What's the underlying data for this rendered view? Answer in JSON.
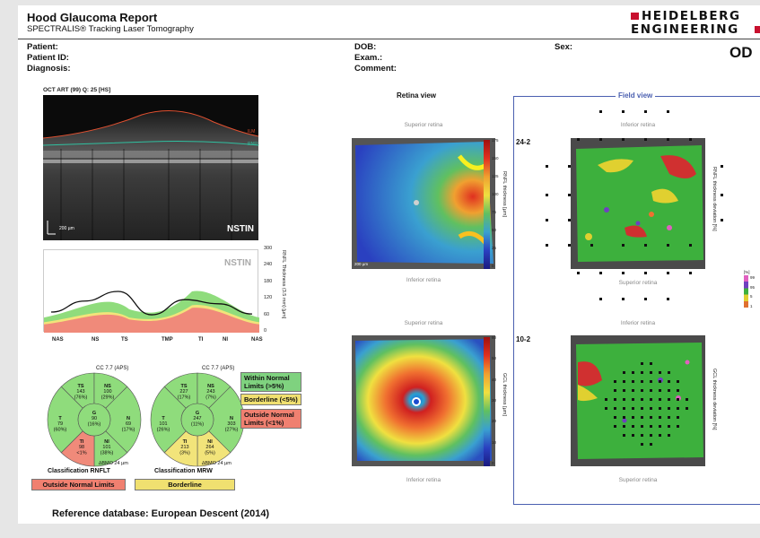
{
  "report": {
    "title": "Hood Glaucoma Report",
    "subtitle": "SPECTRALIS® Tracking Laser Tomography",
    "logo_line1": "HEIDELBERG",
    "logo_line2": "ENGINEERING",
    "eye": "OD"
  },
  "patient": {
    "patient_label": "Patient:",
    "patient_id_label": "Patient ID:",
    "diagnosis_label": "Diagnosis:",
    "dob_label": "DOB:",
    "exam_label": "Exam.:",
    "comment_label": "Comment:",
    "sex_label": "Sex:"
  },
  "oct": {
    "header": "OCT ART (99) Q: 25 [HS]",
    "scale": "200 µm",
    "layer_a": "ILM",
    "layer_b": "RNFL",
    "nstin": "NSTIN"
  },
  "profile": {
    "nstin": "NSTIN",
    "y_ticks": [
      "300",
      "240",
      "180",
      "120",
      "60",
      "0"
    ],
    "y_axis_label": "RNFL Thickness (3.5 mm) [µm]",
    "x_labels": [
      "NAS",
      "NS",
      "TS",
      "TMP",
      "TI",
      "NI",
      "NAS"
    ],
    "chart_data": {
      "type": "line",
      "x": [
        "NAS",
        "NS",
        "TS",
        "TMP",
        "TI",
        "NI",
        "NAS"
      ],
      "series": [
        {
          "values": [
            75,
            115,
            150,
            65,
            120,
            105,
            68
          ]
        }
      ],
      "ylim": [
        0,
        300
      ]
    }
  },
  "circles": {
    "rnfl": {
      "cc": "CC 7.7 (APS)",
      "ts": [
        "TS",
        "143",
        "(76%)"
      ],
      "ns": [
        "NS",
        "100",
        "(29%)"
      ],
      "t": [
        "T",
        "79",
        "(60%)"
      ],
      "g": [
        "G",
        "90",
        "(16%)"
      ],
      "n": [
        "N",
        "69",
        "(17%)"
      ],
      "ti": [
        "TI",
        "98",
        "<1%"
      ],
      "ni": [
        "NI",
        "101",
        "(38%)"
      ],
      "bmo": "∆BMO 24 µm",
      "class_label": "Classification RNFLT",
      "class_value": "Outside Normal Limits"
    },
    "mrw": {
      "cc": "CC 7.7 (APS)",
      "ts": [
        "TS",
        "227",
        "(17%)"
      ],
      "ns": [
        "NS",
        "243",
        "(7%)"
      ],
      "t": [
        "T",
        "101",
        "(26%)"
      ],
      "g": [
        "G",
        "247",
        "(11%)"
      ],
      "n": [
        "N",
        "303",
        "(27%)"
      ],
      "ti": [
        "TI",
        "213",
        "(3%)"
      ],
      "ni": [
        "NI",
        "264",
        "(5%)"
      ],
      "bmo": "∆BMO 24 µm",
      "class_label": "Classification MRW",
      "class_value": "Borderline"
    }
  },
  "legend": {
    "wnl": [
      "Within Normal",
      "Limits (>5%)"
    ],
    "bl": "Borderline (<5%)",
    "onl": [
      "Outside Normal",
      "Limits (<1%)"
    ]
  },
  "retina_view": {
    "title": "Retina view",
    "sup": "Superior retina",
    "inf": "Inferior retina",
    "sup2": "Superior retina",
    "inf2": "Inferior retina",
    "rnfl_axis": "RNFL thickness [µm]",
    "gcl_axis": "GCL thickness [µm]",
    "rnfl_ticks": [
      "175",
      "150",
      "125",
      "100",
      "75",
      "50",
      "25",
      "0"
    ],
    "gcl_ticks": [
      "60",
      "50",
      "40",
      "30",
      "20",
      "10",
      "0"
    ],
    "scale": "200 µm"
  },
  "field_view": {
    "title": "Field view",
    "inf": "Inferior retina",
    "sup": "Superior retina",
    "inf2": "Inferior retina",
    "sup2": "Superior retina",
    "label_242": "24-2",
    "label_102": "10-2",
    "rnfl_dev": "RNFL thickness deviation [%]",
    "gcl_dev": "GCL thickness deviation [%]",
    "pct_label": "[%]",
    "pct_ticks": [
      "99",
      "95",
      "5",
      "1"
    ]
  },
  "colors": {
    "green": "#7fd27f",
    "yellow": "#f0e070",
    "red": "#f08070",
    "frame_blue": "#4a5fb0"
  },
  "footer": {
    "reference": "Reference database: European Descent (2014)"
  }
}
